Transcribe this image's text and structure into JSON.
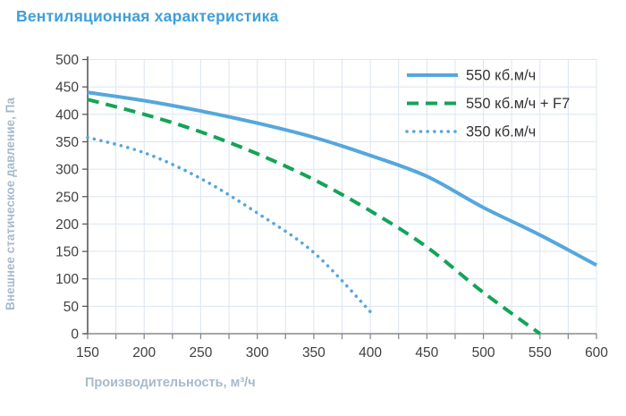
{
  "title": "Вентиляционная характеристика",
  "colors": {
    "title": "#3E9FD9",
    "axis_label": "#A6BACD",
    "tick_label": "#3F3F3F",
    "grid": "#DCE5F1",
    "x_axis_line": "#8A8A8A",
    "y_axis_line": "#5A5A5A",
    "legend_text": "#333333"
  },
  "axes": {
    "x_title": "Производительность, м³/ч",
    "y_title": "Внешнее статическое давление, Па",
    "x_ticks": [
      150,
      200,
      250,
      300,
      350,
      400,
      450,
      500,
      550,
      600
    ],
    "y_ticks": [
      0,
      50,
      100,
      150,
      200,
      250,
      300,
      350,
      400,
      450,
      500
    ]
  },
  "chart_data": {
    "type": "line",
    "title": "Вентиляционная характеристика",
    "xlabel": "Производительность, м³/ч",
    "ylabel": "Внешнее статическое давление, Па",
    "xlim": [
      150,
      600
    ],
    "ylim": [
      0,
      500
    ],
    "x_tick_step": 50,
    "y_tick_step": 50,
    "x_minor_grid_step": 25,
    "grid": true,
    "legend_position": "top-right",
    "series": [
      {
        "name": "550 кб.м/ч",
        "style": "solid",
        "color": "#55A7DC",
        "x": [
          150,
          200,
          250,
          300,
          350,
          400,
          450,
          500,
          550,
          600
        ],
        "y": [
          440,
          425,
          406,
          384,
          358,
          325,
          287,
          230,
          180,
          125
        ]
      },
      {
        "name": "550 кб.м/ч + F7",
        "style": "dashed",
        "color": "#13A457",
        "x": [
          150,
          200,
          250,
          300,
          350,
          400,
          450,
          500,
          550
        ],
        "y": [
          427,
          400,
          368,
          328,
          281,
          224,
          158,
          75,
          0
        ]
      },
      {
        "name": "350 кб.м/ч",
        "style": "dotted",
        "color": "#58A5DB",
        "x": [
          150,
          200,
          250,
          300,
          350,
          400
        ],
        "y": [
          358,
          330,
          283,
          220,
          148,
          40
        ]
      }
    ]
  }
}
